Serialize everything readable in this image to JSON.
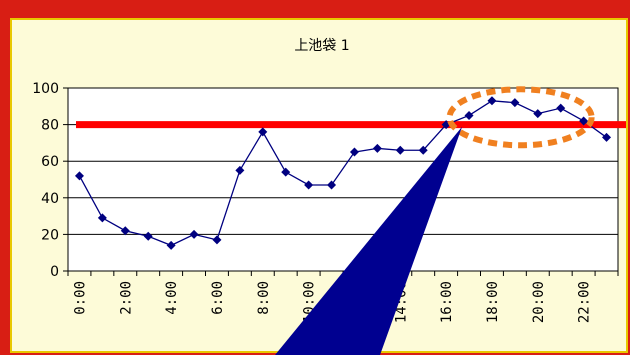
{
  "banner": {
    "text": ""
  },
  "chart_data": {
    "type": "line",
    "title": "上池袋 1",
    "xlabel": "",
    "ylabel": "",
    "ylim": [
      0,
      100
    ],
    "y_ticks": [
      0,
      20,
      40,
      60,
      80,
      100
    ],
    "x_tick_labels": [
      "0:00",
      "2:00",
      "4:00",
      "6:00",
      "8:00",
      "10:00",
      "12:00",
      "14:00",
      "16:00",
      "18:00",
      "20:00",
      "22:00"
    ],
    "x_hours": [
      0,
      1,
      2,
      3,
      4,
      5,
      6,
      7,
      8,
      9,
      10,
      11,
      12,
      13,
      14,
      15,
      16,
      17,
      18,
      19,
      20,
      21,
      22,
      23
    ],
    "series": [
      {
        "values": [
          52,
          29,
          22,
          19,
          14,
          20,
          17,
          55,
          76,
          54,
          47,
          47,
          65,
          67,
          66,
          66,
          80,
          85,
          93,
          92,
          86,
          89,
          82,
          73
        ]
      }
    ],
    "threshold": 80,
    "grid": true,
    "legend": "none",
    "colors": {
      "series": "#000080",
      "threshold": "#ff0000",
      "highlight": "#f08020",
      "callout": "#000090",
      "grid": "#000000",
      "plot_bg": "#ffffff",
      "panel_bg": "#fdfbd8",
      "background": "#d81e14"
    },
    "annotations": [
      {
        "type": "ellipse-highlight",
        "x_range": [
          17.0,
          22.5
        ],
        "y_center": 84
      },
      {
        "type": "callout-pointer",
        "target_hour": 17.2,
        "target_value": 80
      }
    ]
  }
}
